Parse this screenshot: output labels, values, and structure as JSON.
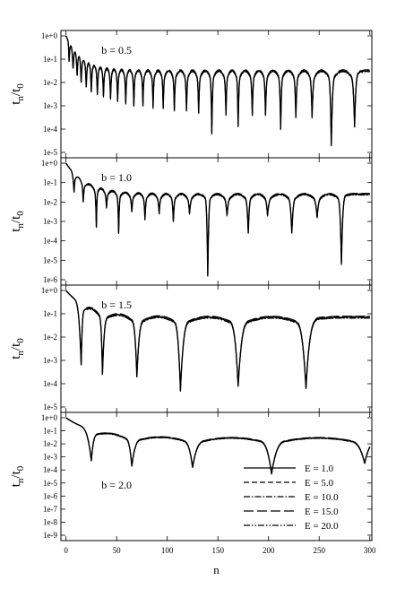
{
  "chart_data": {
    "type": "line",
    "xlabel": "n",
    "xlim": [
      -5,
      302
    ],
    "x_ticks": [
      "0",
      "50",
      "100",
      "150",
      "200",
      "250",
      "300"
    ],
    "x_tick_values": [
      0,
      50,
      100,
      150,
      200,
      250,
      300
    ],
    "ylabel_main": "t",
    "ylabel_sub1": "n",
    "ylabel_mid": "/t",
    "ylabel_sub2": "0",
    "y_scale": "log",
    "legend": {
      "placement": "bottom-right of last panel",
      "entries": [
        {
          "label": "E =  1.0",
          "dash": "solid"
        },
        {
          "label": "E =  5.0",
          "dash": "dashed"
        },
        {
          "label": "E = 10.0",
          "dash": "dash-dot"
        },
        {
          "label": "E = 15.0",
          "dash": "long-dash"
        },
        {
          "label": "E = 20.0",
          "dash": "dash-dot-dot"
        }
      ]
    },
    "panels": [
      {
        "label": "b = 0.5",
        "y_exp_range": [
          -5,
          0
        ],
        "y_ticks": [
          "1e+0",
          "1e-1",
          "1e-2",
          "1e-3",
          "1e-4",
          "1e-5"
        ],
        "start_log": 0.0,
        "base_log": -1.5,
        "base_lambda": 0.07,
        "arch_depth": 0.5,
        "dips": [
          {
            "n": 3,
            "log": -1.1
          },
          {
            "n": 7,
            "log": -1.4
          },
          {
            "n": 11,
            "log": -1.7
          },
          {
            "n": 15,
            "log": -2.0
          },
          {
            "n": 20,
            "log": -2.2
          },
          {
            "n": 25,
            "log": -2.4
          },
          {
            "n": 31,
            "log": -2.5
          },
          {
            "n": 37,
            "log": -2.6
          },
          {
            "n": 44,
            "log": -2.7
          },
          {
            "n": 51,
            "log": -2.8
          },
          {
            "n": 59,
            "log": -2.9
          },
          {
            "n": 67,
            "log": -3.0
          },
          {
            "n": 76,
            "log": -3.0
          },
          {
            "n": 86,
            "log": -3.1
          },
          {
            "n": 96,
            "log": -3.1
          },
          {
            "n": 107,
            "log": -3.2
          },
          {
            "n": 119,
            "log": -3.2
          },
          {
            "n": 131,
            "log": -3.3
          },
          {
            "n": 144,
            "log": -4.2
          },
          {
            "n": 158,
            "log": -3.4
          },
          {
            "n": 170,
            "log": -3.9
          },
          {
            "n": 184,
            "log": -3.4
          },
          {
            "n": 197,
            "log": -3.4
          },
          {
            "n": 212,
            "log": -4.0
          },
          {
            "n": 227,
            "log": -3.5
          },
          {
            "n": 243,
            "log": -3.5
          },
          {
            "n": 262,
            "log": -4.7
          },
          {
            "n": 285,
            "log": -3.9
          }
        ]
      },
      {
        "label": "b = 1.0",
        "y_exp_range": [
          -6,
          0
        ],
        "y_ticks": [
          "1e+0",
          "1e-1",
          "1e-2",
          "1e-3",
          "1e-4",
          "1e-5",
          "1e-6"
        ],
        "start_log": 0.0,
        "base_log": -1.6,
        "base_lambda": 0.05,
        "arch_depth": 0.4,
        "dips": [
          {
            "n": 8,
            "log": -1.5
          },
          {
            "n": 17,
            "log": -2.0
          },
          {
            "n": 30,
            "log": -3.3
          },
          {
            "n": 40,
            "log": -2.3
          },
          {
            "n": 52,
            "log": -3.6
          },
          {
            "n": 65,
            "log": -2.5
          },
          {
            "n": 78,
            "log": -2.9
          },
          {
            "n": 92,
            "log": -2.6
          },
          {
            "n": 106,
            "log": -3.0
          },
          {
            "n": 122,
            "log": -2.6
          },
          {
            "n": 140,
            "log": -5.8
          },
          {
            "n": 159,
            "log": -2.7
          },
          {
            "n": 180,
            "log": -3.6
          },
          {
            "n": 199,
            "log": -2.7
          },
          {
            "n": 223,
            "log": -3.6
          },
          {
            "n": 248,
            "log": -2.8
          },
          {
            "n": 272,
            "log": -5.2
          }
        ]
      },
      {
        "label": "b = 1.5",
        "y_exp_range": [
          -5,
          0
        ],
        "y_ticks": [
          "1e+0",
          "1e-1",
          "1e-2",
          "1e-3",
          "1e-4",
          "1e-5"
        ],
        "start_log": 0.0,
        "base_log": -1.15,
        "base_lambda": 0.045,
        "arch_depth": 0.4,
        "dips": [
          {
            "n": 15,
            "log": -3.2
          },
          {
            "n": 36,
            "log": -3.6
          },
          {
            "n": 70,
            "log": -3.7
          },
          {
            "n": 113,
            "log": -4.3
          },
          {
            "n": 170,
            "log": -4.1
          },
          {
            "n": 237,
            "log": -4.2
          }
        ]
      },
      {
        "label": "b = 2.0",
        "y_exp_range": [
          -9,
          0
        ],
        "y_ticks": [
          "1e+0",
          "1e-1",
          "1e-2",
          "1e-3",
          "1e-4",
          "1e-5",
          "1e-6",
          "1e-7",
          "1e-8",
          "1e-9"
        ],
        "start_log": 0.0,
        "base_log": -1.55,
        "base_lambda": 0.035,
        "arch_depth": 0.5,
        "dips": [
          {
            "n": 25,
            "log": -3.3
          },
          {
            "n": 65,
            "log": -3.7
          },
          {
            "n": 125,
            "log": -3.8
          },
          {
            "n": 203,
            "log": -4.3
          },
          {
            "n": 295,
            "log": -3.5
          }
        ]
      }
    ]
  }
}
